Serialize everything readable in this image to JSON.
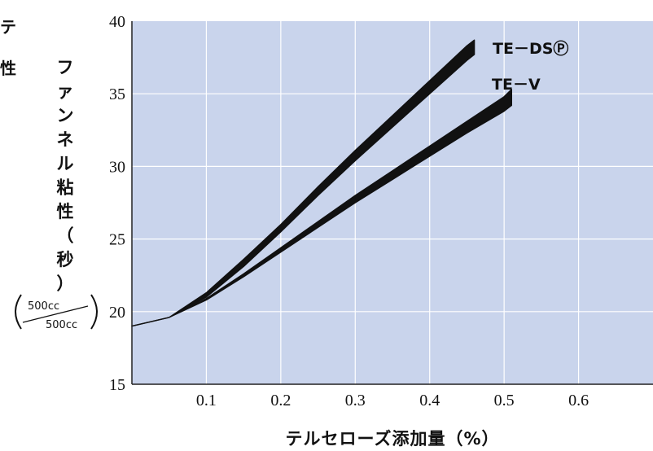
{
  "chart_data": {
    "type": "line",
    "title": "",
    "xlabel": "テルセローズ添加量（%）",
    "ylabel": "ファンネル粘性（秒）",
    "ylabel_unit_top": "500cc",
    "ylabel_unit_bottom": "500cc",
    "xlim": [
      0,
      0.7
    ],
    "ylim": [
      15,
      40
    ],
    "x_ticks": [
      "0.1",
      "0.2",
      "0.3",
      "0.4",
      "0.5",
      "0.6"
    ],
    "y_ticks": [
      "15",
      "20",
      "25",
      "30",
      "35",
      "40"
    ],
    "grid": true,
    "plot_background": "#c9d4ec",
    "edge_text": [
      "テ",
      "性"
    ],
    "series": [
      {
        "name": "TE－DSⓅ",
        "color": "#111111",
        "x": [
          0.0,
          0.05,
          0.1,
          0.15,
          0.2,
          0.25,
          0.3,
          0.35,
          0.4,
          0.45,
          0.46
        ],
        "y_low": [
          19.0,
          19.6,
          21.0,
          23.1,
          25.5,
          28.0,
          30.4,
          32.7,
          35.0,
          37.3,
          37.7
        ],
        "y_high": [
          19.0,
          19.6,
          21.3,
          23.6,
          26.0,
          28.6,
          31.1,
          33.5,
          35.9,
          38.3,
          38.7
        ]
      },
      {
        "name": "TE－V",
        "color": "#111111",
        "x": [
          0.0,
          0.05,
          0.1,
          0.15,
          0.2,
          0.25,
          0.3,
          0.35,
          0.4,
          0.45,
          0.5,
          0.51
        ],
        "y_low": [
          19.0,
          19.6,
          20.8,
          22.4,
          24.1,
          25.8,
          27.5,
          29.1,
          30.7,
          32.3,
          33.8,
          34.2
        ],
        "y_high": [
          19.0,
          19.6,
          20.9,
          22.6,
          24.4,
          26.2,
          28.0,
          29.7,
          31.4,
          33.1,
          34.8,
          35.3
        ]
      }
    ]
  }
}
